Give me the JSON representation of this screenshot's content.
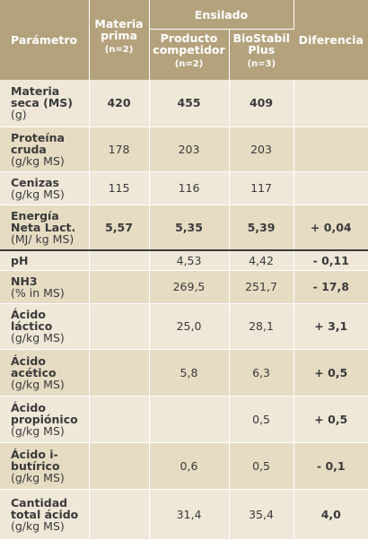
{
  "header": {
    "param": "Parámetro",
    "materia": "Materia prima",
    "materia_n": "(n=2)",
    "ensilado": "Ensilado",
    "competidor": "Producto competidor",
    "competidor_n": "(n=2)",
    "biostabil": "BioStabil Plus",
    "biostabil_n": "(n=3)",
    "diferencia": "Diferencia"
  },
  "rows": [
    {
      "name": "Materia seca (MS)",
      "unit": "(g)",
      "materia": "420",
      "competidor": "455",
      "biostabil": "409",
      "diferencia": ""
    },
    {
      "name": "Proteína cruda",
      "unit": "(g/kg MS)",
      "materia": "178",
      "competidor": "203",
      "biostabil": "203",
      "diferencia": ""
    },
    {
      "name": "Cenizas",
      "unit": "(g/kg MS)",
      "materia": "115",
      "competidor": "116",
      "biostabil": "117",
      "diferencia": ""
    },
    {
      "name": "Energía Neta Lact.",
      "unit": "(MJ/ kg MS)",
      "materia": "5,57",
      "competidor": "5,35",
      "biostabil": "5,39",
      "diferencia": "+ 0,04"
    },
    {
      "name": "pH",
      "unit": "",
      "materia": "",
      "competidor": "4,53",
      "biostabil": "4,42",
      "diferencia": "- 0,11"
    },
    {
      "name": "NH3",
      "unit": "(% in MS)",
      "materia": "",
      "competidor": "269,5",
      "biostabil": "251,7",
      "diferencia": "- 17,8"
    },
    {
      "name": "Ácido láctico",
      "unit": "(g/kg MS)",
      "materia": "",
      "competidor": "25,0",
      "biostabil": "28,1",
      "diferencia": "+ 3,1"
    },
    {
      "name": "Ácido acético",
      "unit": "(g/kg MS)",
      "materia": "",
      "competidor": "5,8",
      "biostabil": "6,3",
      "diferencia": "+ 0,5"
    },
    {
      "name": "Ácido propiónico",
      "unit": "(g/kg MS)",
      "materia": "",
      "competidor": "",
      "biostabil": "0,5",
      "diferencia": "+ 0,5"
    },
    {
      "name": "Ácido i-butírico",
      "unit": "(g/kg MS)",
      "materia": "",
      "competidor": "0,6",
      "biostabil": "0,5",
      "diferencia": "- 0,1"
    },
    {
      "name": "Cantidad total ácido",
      "unit": "(g/kg MS)",
      "materia": "",
      "competidor": "31,4",
      "biostabil": "35,4",
      "diferencia": "4,0"
    }
  ]
}
